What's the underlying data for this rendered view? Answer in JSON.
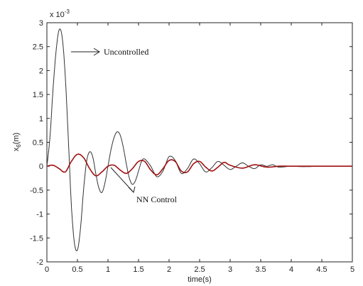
{
  "chart_data": {
    "type": "line",
    "title": "",
    "xlabel": "time(s)",
    "ylabel": "x",
    "ylabel_subscript": "6",
    "ylabel_unit": "(m)",
    "y_scale_label": "x 10",
    "y_scale_exponent": "-3",
    "xlim": [
      0,
      5
    ],
    "ylim": [
      -2,
      3
    ],
    "xticks": [
      "0",
      "0.5",
      "1",
      "1.5",
      "2",
      "2.5",
      "3",
      "3.5",
      "4",
      "4.5",
      "5"
    ],
    "yticks": [
      "3",
      "2.5",
      "2",
      "1.5",
      "1",
      "0.5",
      "0",
      "-0.5",
      "-1",
      "-1.5",
      "-2"
    ],
    "grid": false,
    "colors": {
      "uncontrolled": "#333333",
      "nn_control": "#a01010",
      "axes": "#222222"
    },
    "series": [
      {
        "name": "Uncontrolled",
        "x": [
          0,
          0.05,
          0.1,
          0.15,
          0.2,
          0.25,
          0.3,
          0.35,
          0.4,
          0.45,
          0.5,
          0.55,
          0.6,
          0.65,
          0.7,
          0.75,
          0.8,
          0.85,
          0.9,
          0.95,
          1.0,
          1.05,
          1.1,
          1.15,
          1.2,
          1.25,
          1.3,
          1.35,
          1.4,
          1.45,
          1.5,
          1.55,
          1.6,
          1.7,
          1.8,
          1.9,
          2.0,
          2.1,
          2.2,
          2.3,
          2.4,
          2.5,
          2.6,
          2.7,
          2.8,
          2.9,
          3.0,
          3.1,
          3.2,
          3.3,
          3.4,
          3.5,
          3.6,
          3.7,
          3.8,
          4.0,
          4.2,
          4.5,
          5.0
        ],
        "values": [
          0,
          0.6,
          1.6,
          2.4,
          2.85,
          2.7,
          1.9,
          0.6,
          -0.8,
          -1.6,
          -1.75,
          -1.3,
          -0.5,
          0.1,
          0.3,
          0.2,
          -0.15,
          -0.45,
          -0.55,
          -0.35,
          0.0,
          0.35,
          0.6,
          0.72,
          0.65,
          0.4,
          0.05,
          -0.25,
          -0.38,
          -0.3,
          -0.1,
          0.1,
          0.15,
          0.0,
          -0.22,
          -0.1,
          0.2,
          0.12,
          -0.15,
          -0.05,
          0.15,
          0.05,
          -0.12,
          -0.03,
          0.1,
          0.02,
          -0.07,
          0.0,
          0.07,
          0.0,
          -0.05,
          0.03,
          0.0,
          0.03,
          -0.02,
          0.0,
          -0.01,
          0.0,
          0.0
        ]
      },
      {
        "name": "NN Control",
        "x": [
          0,
          0.1,
          0.2,
          0.3,
          0.4,
          0.5,
          0.6,
          0.7,
          0.8,
          0.9,
          1.0,
          1.1,
          1.2,
          1.3,
          1.4,
          1.5,
          1.6,
          1.7,
          1.8,
          1.9,
          2.0,
          2.1,
          2.2,
          2.3,
          2.4,
          2.5,
          2.6,
          2.7,
          2.8,
          2.9,
          3.0,
          3.2,
          3.4,
          3.6,
          3.8,
          4.0,
          4.5,
          5.0
        ],
        "values": [
          0,
          0.02,
          -0.05,
          -0.12,
          0.1,
          0.25,
          0.18,
          -0.05,
          -0.2,
          -0.12,
          0.0,
          0.02,
          -0.08,
          -0.15,
          -0.05,
          0.1,
          0.1,
          -0.08,
          -0.18,
          -0.05,
          0.12,
          0.1,
          -0.1,
          -0.12,
          0.05,
          0.1,
          -0.02,
          -0.1,
          -0.02,
          0.08,
          0.02,
          -0.04,
          0.03,
          -0.02,
          0.0,
          0.0,
          0.0,
          0.0
        ]
      }
    ],
    "annotations": [
      {
        "text": "Uncontrolled",
        "target_x": 0.33,
        "target_y": 2.55
      },
      {
        "text": "NN Control",
        "target_x": 1.05,
        "target_y": -0.05
      }
    ]
  }
}
